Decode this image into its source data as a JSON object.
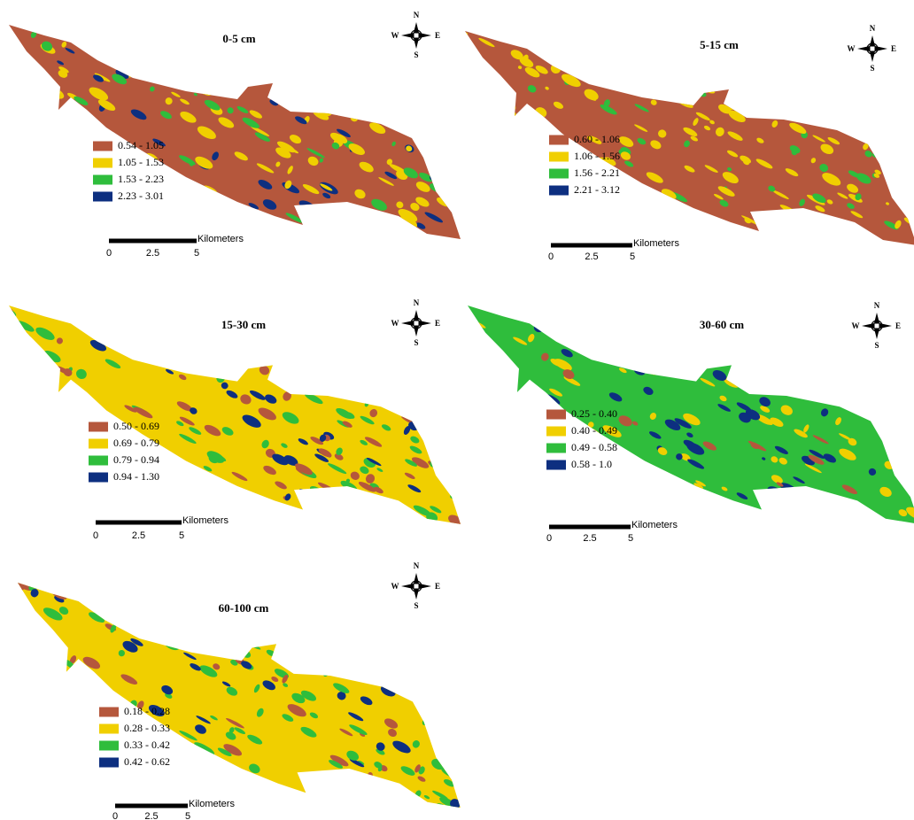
{
  "panels": [
    {
      "title": "0-5 cm",
      "legend": [
        "0.54 - 1.05",
        "1.05 - 1.53",
        "1.53 - 2.23",
        "2.23 - 3.01"
      ],
      "compass": {
        "n": "N",
        "s": "S",
        "w": "W",
        "e": "E"
      },
      "scale": {
        "unit": "Kilometers",
        "ticks": [
          "0",
          "2.5",
          "5"
        ]
      }
    },
    {
      "title": "5-15 cm",
      "legend": [
        "0.60 - 1.06",
        "1.06 - 1.56",
        "1.56 - 2.21",
        "2.21 - 3.12"
      ],
      "compass": {
        "n": "N",
        "s": "S",
        "w": "W",
        "e": "E"
      },
      "scale": {
        "unit": "Kilometers",
        "ticks": [
          "0",
          "2.5",
          "5"
        ]
      }
    },
    {
      "title": "15-30 cm",
      "legend": [
        "0.50 - 0.69",
        "0.69 - 0.79",
        "0.79 - 0.94",
        "0.94 - 1.30"
      ],
      "compass": {
        "n": "N",
        "s": "S",
        "w": "W",
        "e": "E"
      },
      "scale": {
        "unit": "Kilometers",
        "ticks": [
          "0",
          "2.5",
          "5"
        ]
      }
    },
    {
      "title": "30-60 cm",
      "legend": [
        "0.25 - 0.40",
        "0.40 - 0.49",
        "0.49 - 0.58",
        "0.58 - 1.0"
      ],
      "compass": {
        "n": "N",
        "s": "S",
        "w": "W",
        "e": "E"
      },
      "scale": {
        "unit": "Kilometers",
        "ticks": [
          "0",
          "2.5",
          "5"
        ]
      }
    },
    {
      "title": "60-100 cm",
      "legend": [
        "0.18 - 0.28",
        "0.28 - 0.33",
        "0.33 - 0.42",
        "0.42 - 0.62"
      ],
      "compass": {
        "n": "N",
        "s": "S",
        "w": "W",
        "e": "E"
      },
      "scale": {
        "unit": "Kilometers",
        "ticks": [
          "0",
          "2.5",
          "5"
        ]
      }
    }
  ]
}
